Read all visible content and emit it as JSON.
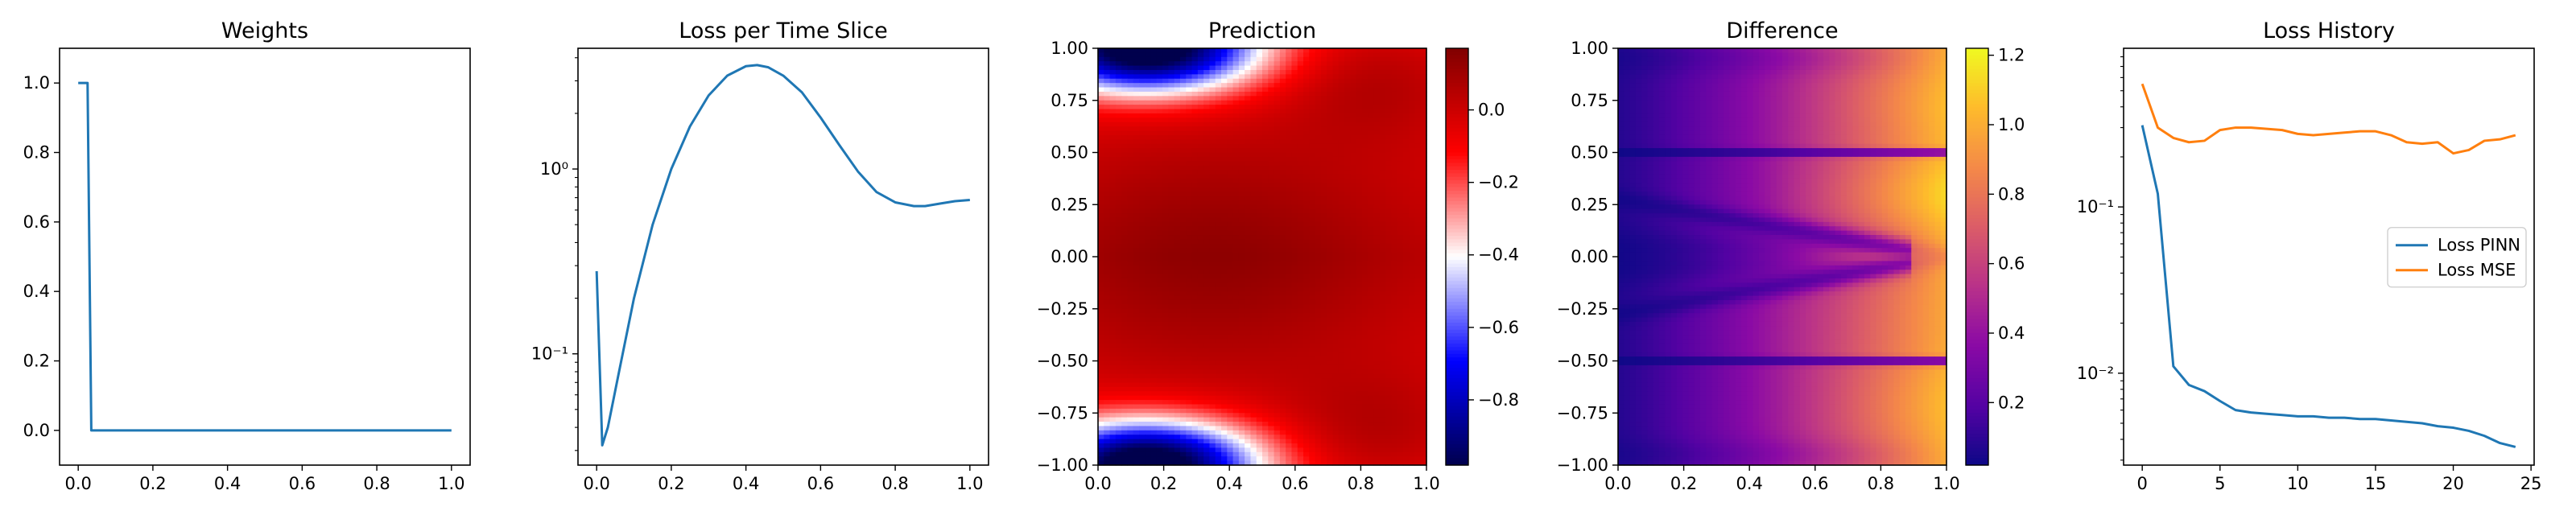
{
  "chart_data": [
    {
      "type": "line",
      "title": "Weights",
      "xlim": [
        -0.05,
        1.05
      ],
      "ylim": [
        -0.1,
        1.1
      ],
      "x_ticks": [
        0.0,
        0.2,
        0.4,
        0.6,
        0.8,
        1.0
      ],
      "x_tick_labels": [
        "0.0",
        "0.2",
        "0.4",
        "0.6",
        "0.8",
        "1.0"
      ],
      "y_ticks": [
        0.0,
        0.2,
        0.4,
        0.6,
        0.8,
        1.0
      ],
      "y_tick_labels": [
        "0.0",
        "0.2",
        "0.4",
        "0.6",
        "0.8",
        "1.0"
      ],
      "color": "#1f77b4",
      "series": [
        {
          "x": [
            0.0,
            0.025,
            0.035,
            1.0
          ],
          "y": [
            1.0,
            1.0,
            0.0,
            0.0
          ]
        }
      ]
    },
    {
      "type": "line",
      "title": "Loss per Time Slice",
      "y_scale": "log",
      "xlim": [
        -0.05,
        1.05
      ],
      "ylim": [
        0.025,
        4.5
      ],
      "x_ticks": [
        0.0,
        0.2,
        0.4,
        0.6,
        0.8,
        1.0
      ],
      "x_tick_labels": [
        "0.0",
        "0.2",
        "0.4",
        "0.6",
        "0.8",
        "1.0"
      ],
      "y_ticks": [
        0.1,
        1.0
      ],
      "y_tick_labels": [
        "10⁻¹",
        "10⁰"
      ],
      "color": "#1f77b4",
      "series": [
        {
          "x": [
            0.0,
            0.015,
            0.03,
            0.06,
            0.1,
            0.15,
            0.2,
            0.25,
            0.3,
            0.35,
            0.4,
            0.43,
            0.46,
            0.5,
            0.55,
            0.6,
            0.65,
            0.7,
            0.75,
            0.8,
            0.85,
            0.88,
            0.92,
            0.96,
            1.0
          ],
          "y": [
            0.28,
            0.032,
            0.04,
            0.08,
            0.2,
            0.5,
            1.0,
            1.7,
            2.5,
            3.2,
            3.6,
            3.65,
            3.55,
            3.2,
            2.6,
            1.9,
            1.35,
            0.97,
            0.75,
            0.66,
            0.63,
            0.63,
            0.65,
            0.67,
            0.68
          ]
        }
      ]
    },
    {
      "type": "heatmap",
      "title": "Prediction",
      "colormap": "seismic",
      "xlim": [
        0.0,
        1.0
      ],
      "ylim": [
        -1.0,
        1.0
      ],
      "x_ticks": [
        0.0,
        0.2,
        0.4,
        0.6,
        0.8,
        1.0
      ],
      "x_tick_labels": [
        "0.0",
        "0.2",
        "0.4",
        "0.6",
        "0.8",
        "1.0"
      ],
      "y_ticks": [
        -1.0,
        -0.75,
        -0.5,
        -0.25,
        0.0,
        0.25,
        0.5,
        0.75,
        1.0
      ],
      "y_tick_labels": [
        "−1.00",
        "−0.75",
        "−0.50",
        "−0.25",
        "0.00",
        "0.25",
        "0.50",
        "0.75",
        "1.00"
      ],
      "colorbar": {
        "range": [
          -0.98,
          0.17
        ],
        "ticks": [
          -0.8,
          -0.6,
          -0.4,
          -0.2,
          0.0
        ],
        "tick_labels": [
          "−0.8",
          "−0.6",
          "−0.4",
          "−0.2",
          "0.0"
        ]
      }
    },
    {
      "type": "heatmap",
      "title": "Difference",
      "colormap": "plasma",
      "xlim": [
        0.0,
        1.0
      ],
      "ylim": [
        -1.0,
        1.0
      ],
      "x_ticks": [
        0.0,
        0.2,
        0.4,
        0.6,
        0.8,
        1.0
      ],
      "x_tick_labels": [
        "0.0",
        "0.2",
        "0.4",
        "0.6",
        "0.8",
        "1.0"
      ],
      "y_ticks": [
        -1.0,
        -0.75,
        -0.5,
        -0.25,
        0.0,
        0.25,
        0.5,
        0.75,
        1.0
      ],
      "y_tick_labels": [
        "−1.00",
        "−0.75",
        "−0.50",
        "−0.25",
        "0.00",
        "0.25",
        "0.50",
        "0.75",
        "1.00"
      ],
      "colorbar": {
        "range": [
          0.02,
          1.22
        ],
        "ticks": [
          0.2,
          0.4,
          0.6,
          0.8,
          1.0,
          1.2
        ],
        "tick_labels": [
          "0.2",
          "0.4",
          "0.6",
          "0.8",
          "1.0",
          "1.2"
        ]
      }
    },
    {
      "type": "line",
      "title": "Loss History",
      "y_scale": "log",
      "xlim": [
        -1.2,
        25.2
      ],
      "ylim": [
        0.0028,
        0.9
      ],
      "x_ticks": [
        0,
        5,
        10,
        15,
        20,
        25
      ],
      "x_tick_labels": [
        "0",
        "5",
        "10",
        "15",
        "20",
        "25"
      ],
      "y_ticks": [
        0.01,
        0.1
      ],
      "y_tick_labels": [
        "10⁻²",
        "10⁻¹"
      ],
      "legend": "center-right",
      "series": [
        {
          "name": "Loss PINN",
          "color": "#1f77b4",
          "x": [
            0,
            1,
            2,
            3,
            4,
            5,
            6,
            7,
            8,
            9,
            10,
            11,
            12,
            13,
            14,
            15,
            16,
            17,
            18,
            19,
            20,
            21,
            22,
            23,
            24
          ],
          "y": [
            0.31,
            0.12,
            0.011,
            0.0085,
            0.0078,
            0.0068,
            0.006,
            0.0058,
            0.0057,
            0.0056,
            0.0055,
            0.0055,
            0.0054,
            0.0054,
            0.0053,
            0.0053,
            0.0052,
            0.0051,
            0.005,
            0.0048,
            0.0047,
            0.0045,
            0.0042,
            0.0038,
            0.0036
          ]
        },
        {
          "name": "Loss MSE",
          "color": "#ff7f0e",
          "x": [
            0,
            1,
            2,
            3,
            4,
            5,
            6,
            7,
            8,
            9,
            10,
            11,
            12,
            13,
            14,
            15,
            16,
            17,
            18,
            19,
            20,
            21,
            22,
            23,
            24
          ],
          "y": [
            0.55,
            0.3,
            0.26,
            0.245,
            0.25,
            0.29,
            0.3,
            0.3,
            0.295,
            0.29,
            0.275,
            0.27,
            0.275,
            0.28,
            0.285,
            0.285,
            0.27,
            0.245,
            0.24,
            0.245,
            0.21,
            0.22,
            0.25,
            0.255,
            0.27
          ]
        }
      ]
    }
  ]
}
